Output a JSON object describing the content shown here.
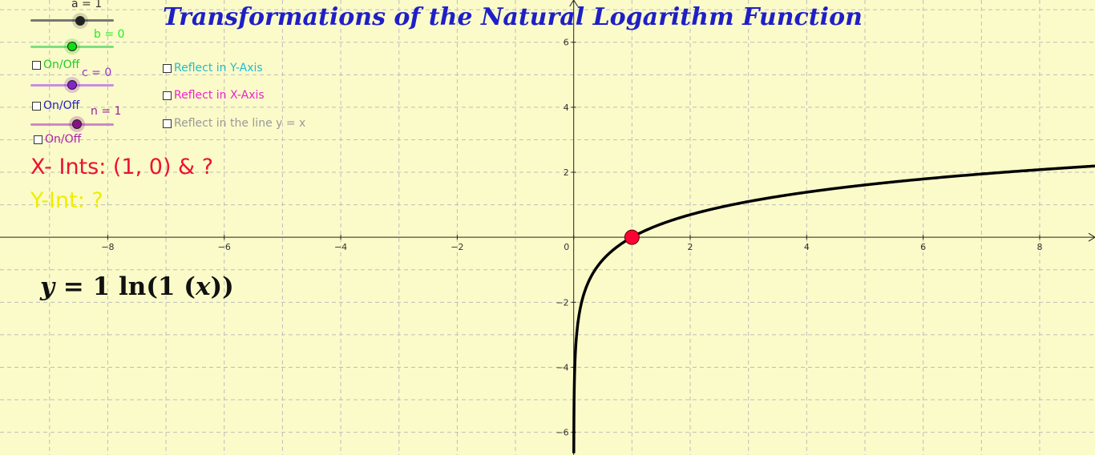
{
  "title": "Transformations of the Natural Logarithm Function",
  "sliders": [
    {
      "label": "a = 1",
      "color": "#555555",
      "knob": "#222222",
      "value": 1
    },
    {
      "label": "b = 0",
      "color": "#33dd33",
      "knob": "#11cc11",
      "value": 0
    },
    {
      "label": "c = 0",
      "color": "#bb66dd",
      "knob": "#8822cc",
      "value": 0
    },
    {
      "label": "n = 1",
      "color": "#bb66bb",
      "knob": "#881188",
      "value": 1
    }
  ],
  "toggles": [
    {
      "label": "On/Off",
      "color": "#22cc22"
    },
    {
      "label": "On/Off",
      "color": "#2222bb"
    },
    {
      "label": "On/Off",
      "color": "#aa22aa"
    }
  ],
  "reflections": [
    {
      "label": "Reflect in Y-Axis",
      "color": "#22bbcc"
    },
    {
      "label": "Reflect in X-Axis",
      "color": "#ee22cc"
    },
    {
      "label": "Reflect in the line y = x",
      "color": "#999999"
    }
  ],
  "x_ints": "X- Ints: (1, 0) & ?",
  "y_int": "Y-Int: ?",
  "equation": {
    "y": "y",
    "eq": " = 1  ln(1  (",
    "x": "x",
    "close": "))"
  },
  "graph": {
    "x_ticks": [
      "−8",
      "−6",
      "−4",
      "−2",
      "0",
      "2",
      "4",
      "6",
      "8"
    ],
    "y_ticks": [
      "6",
      "4",
      "2",
      "−2",
      "−4",
      "−6"
    ],
    "xlim": [
      -9.85,
      8.95
    ],
    "ylim": [
      -6.7,
      7.3
    ],
    "function": "y = ln(x)",
    "point": {
      "x": 1,
      "y": 0,
      "color": "#ff0033"
    }
  }
}
